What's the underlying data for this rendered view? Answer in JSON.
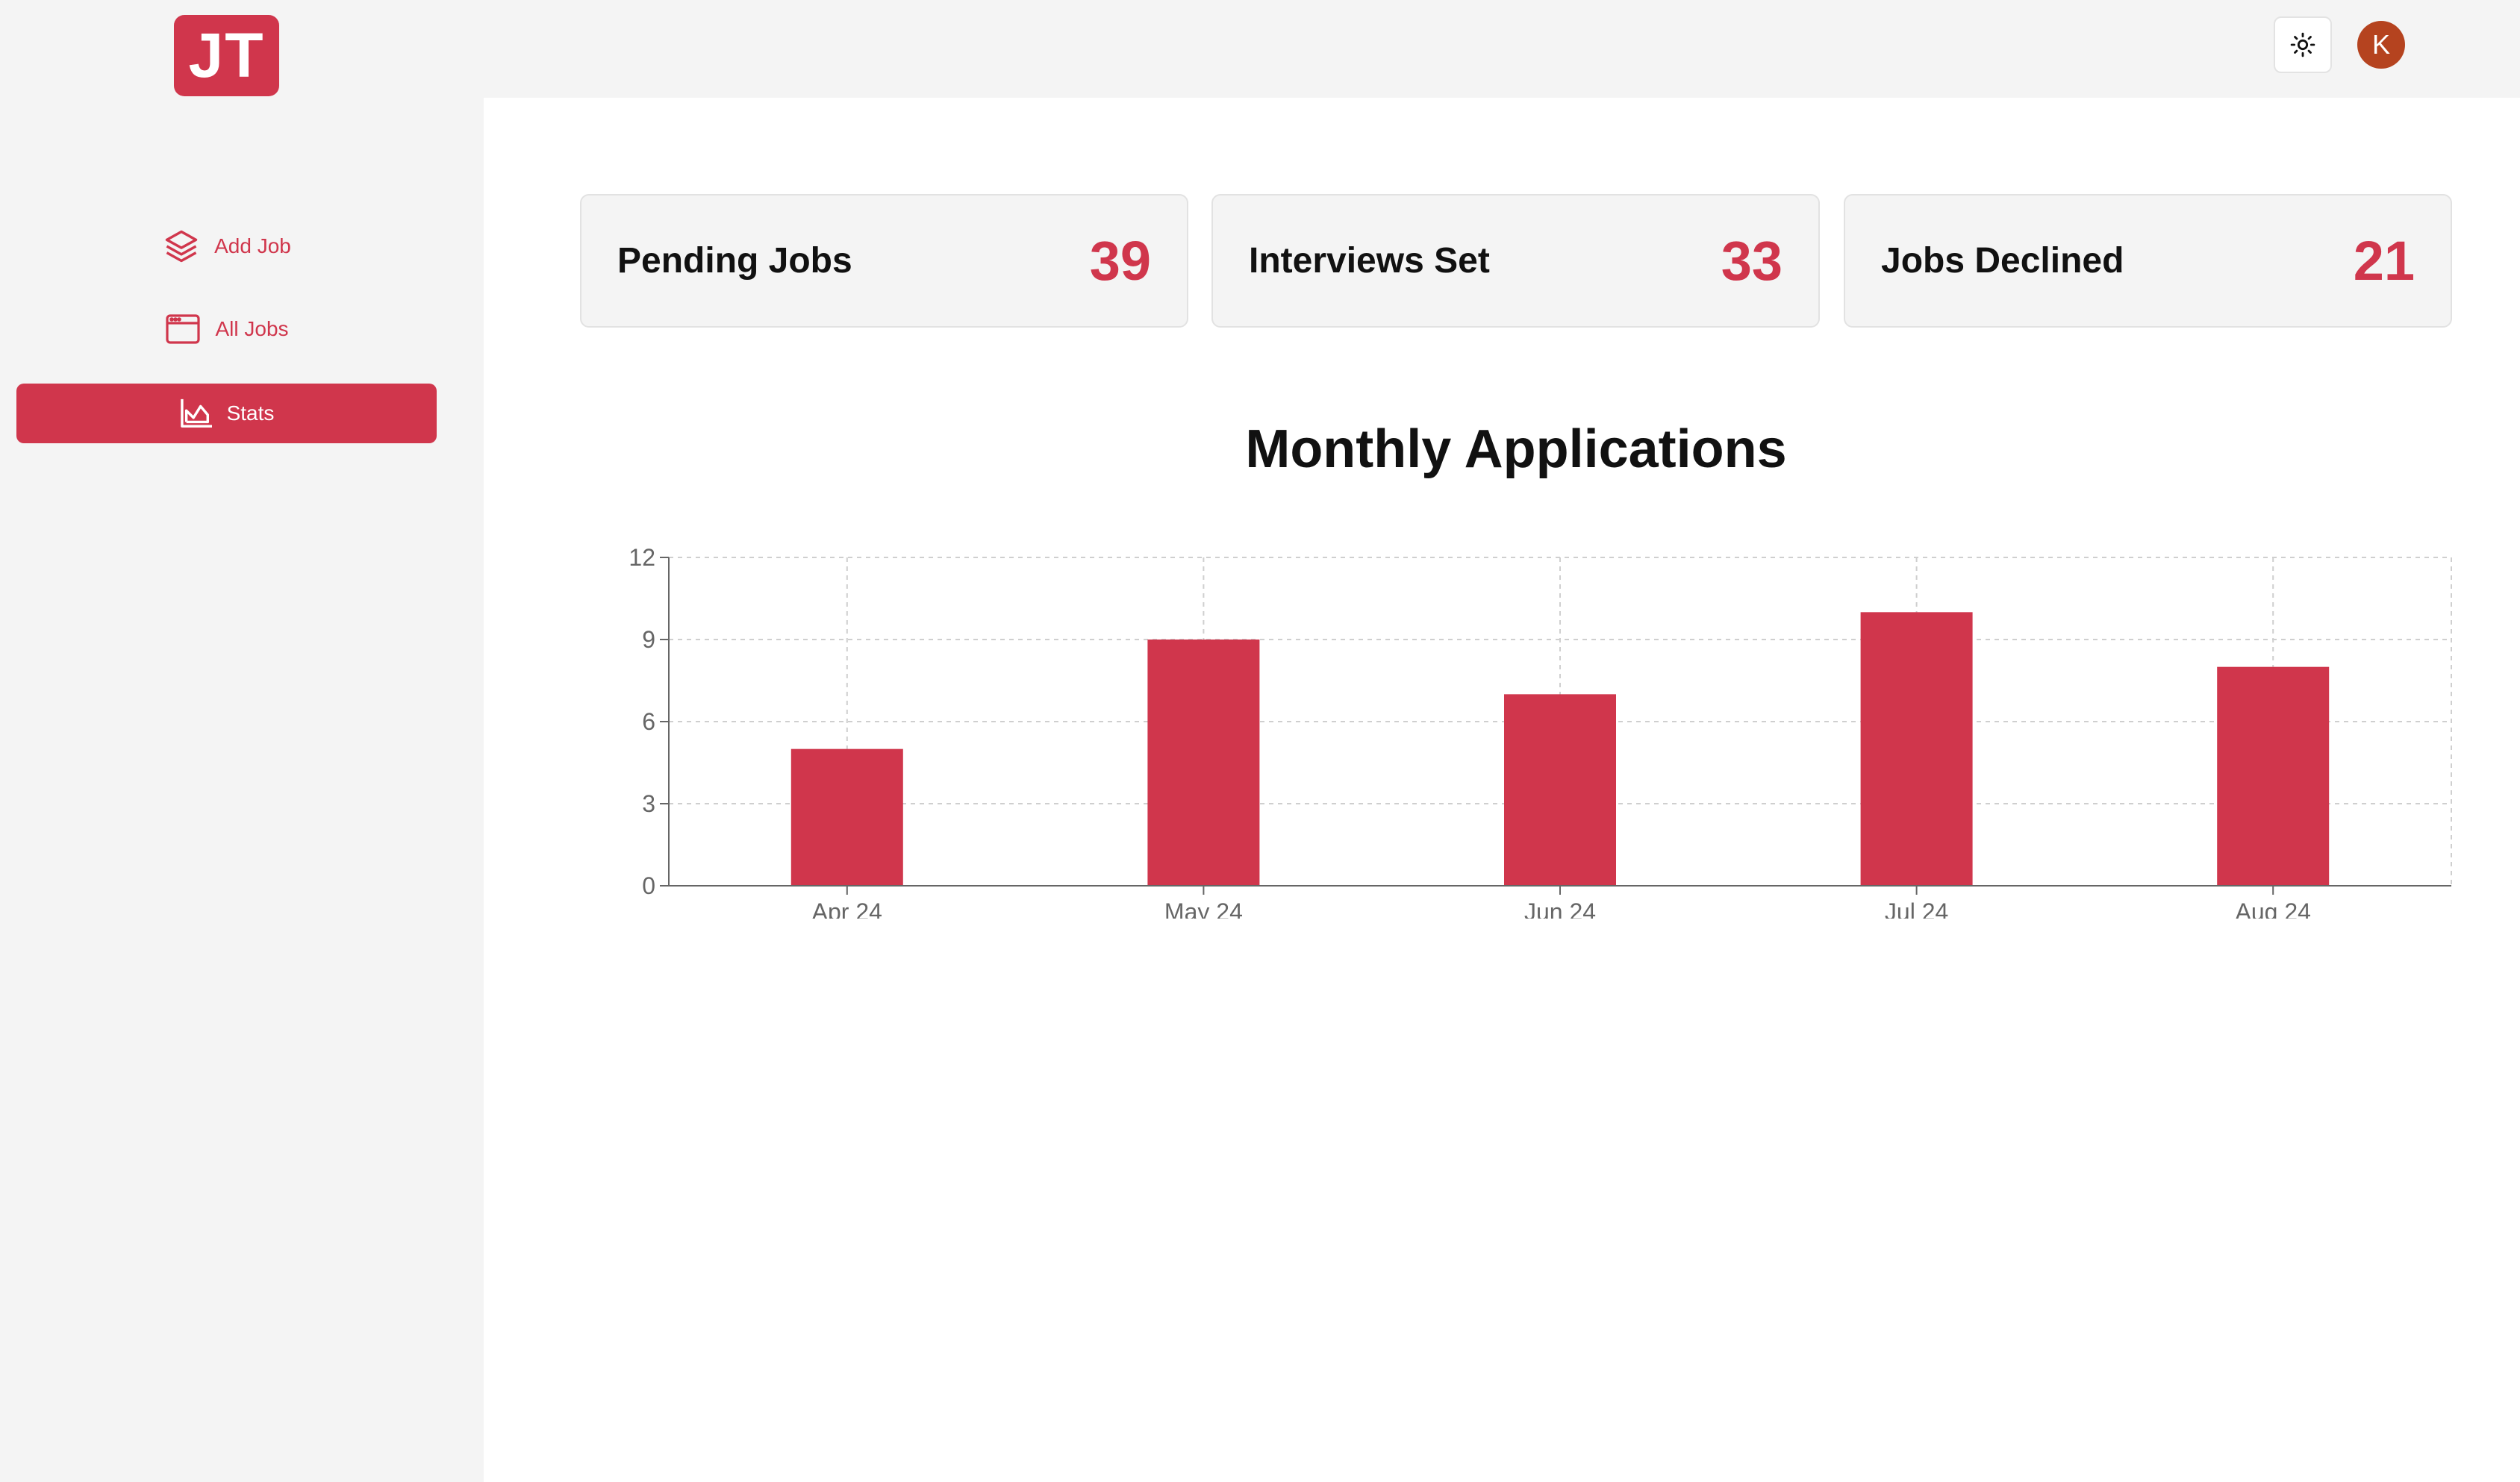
{
  "logo": {
    "text": "JT"
  },
  "topbar": {
    "theme_icon": "sun-icon",
    "avatar_initial": "K"
  },
  "sidebar": {
    "items": [
      {
        "label": "Add Job",
        "icon": "layers-icon",
        "active": false
      },
      {
        "label": "All Jobs",
        "icon": "browser-window-icon",
        "active": false
      },
      {
        "label": "Stats",
        "icon": "area-chart-icon",
        "active": true
      }
    ]
  },
  "stats": [
    {
      "title": "Pending Jobs",
      "value": "39"
    },
    {
      "title": "Interviews Set",
      "value": "33"
    },
    {
      "title": "Jobs Declined",
      "value": "21"
    }
  ],
  "colors": {
    "accent": "#d0364c",
    "avatar": "#b5431f"
  },
  "chart_data": {
    "type": "bar",
    "title": "Monthly Applications",
    "categories": [
      "Apr 24",
      "May 24",
      "Jun 24",
      "Jul 24",
      "Aug 24"
    ],
    "values": [
      5,
      9,
      7,
      10,
      8
    ],
    "yticks": [
      0,
      3,
      6,
      9,
      12
    ],
    "ylim": [
      0,
      12
    ],
    "grid": true,
    "xlabel": "",
    "ylabel": ""
  }
}
